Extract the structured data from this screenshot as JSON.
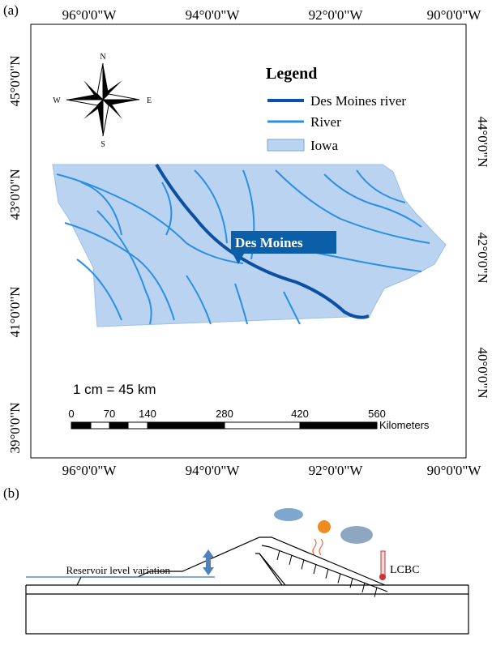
{
  "panel_a": {
    "label": "(a)",
    "top_labels": [
      "96°0'0\"W",
      "94°0'0\"W",
      "92°0'0\"W",
      "90°0'0\"W"
    ],
    "bottom_labels": [
      "96°0'0\"W",
      "94°0'0\"W",
      "92°0'0\"W",
      "90°0'0\"W"
    ],
    "left_labels": [
      "45°0'0\"N",
      "43°0'0\"N",
      "41°0'0\"N",
      "39°0'0\"N"
    ],
    "right_labels": [
      "44°0'0\"N",
      "42°0'0\"N",
      "40°0'0\"N"
    ],
    "compass": {
      "n": "N",
      "e": "E",
      "s": "S",
      "w": "W"
    },
    "legend": {
      "title": "Legend",
      "items": [
        "Des Moines river",
        "River",
        "Iowa"
      ]
    },
    "callout": "Des Moines",
    "scale_text": "1 cm = 45 km",
    "scale_bar": {
      "labels": [
        "0",
        "70",
        "140",
        "280",
        "420",
        "560"
      ],
      "unit": "Kilometers"
    }
  },
  "panel_b": {
    "label": "(b)",
    "water_label": "Reservoir level variation",
    "slope_label": "LCBC"
  }
}
